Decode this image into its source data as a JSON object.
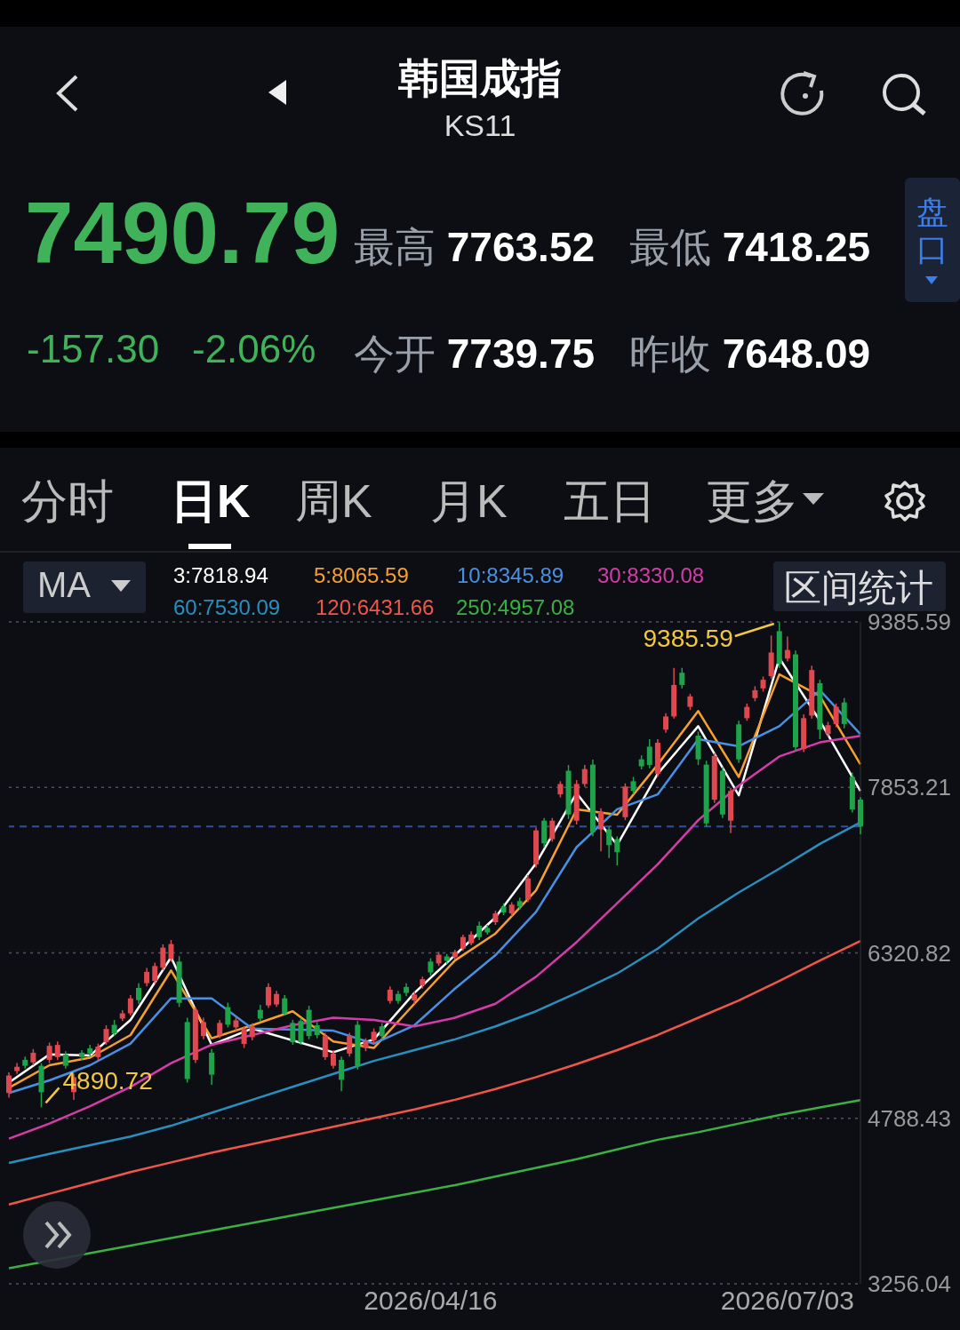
{
  "chart_data": {
    "type": "candlestick",
    "title": "韩国成指",
    "subtitle": "KS11",
    "annotations": [
      "7490.79",
      "最高 7763.52",
      "最低 7418.25",
      "-157.30",
      "-2.06%",
      "今开 7739.75",
      "昨收 7648.09",
      "盘口",
      "分时",
      "日K",
      "周K",
      "月K",
      "五日",
      "更多",
      "MA",
      "区间统计",
      "9385.59",
      "4890.72"
    ],
    "categories": [
      null,
      null,
      null,
      null,
      null,
      null,
      null,
      null,
      null,
      null,
      null,
      null,
      null,
      null,
      null,
      null,
      null,
      null,
      null,
      null,
      null,
      null,
      null,
      null,
      null,
      null,
      null,
      null,
      null,
      null,
      null,
      null,
      null,
      null,
      null,
      null,
      null,
      null,
      null,
      null,
      null,
      null,
      null,
      null,
      null,
      null,
      null,
      null,
      null,
      null,
      null,
      null,
      "2026/04/16",
      null,
      null,
      null,
      null,
      null,
      null,
      null,
      null,
      null,
      null,
      null,
      null,
      null,
      null,
      null,
      null,
      null,
      null,
      null,
      null,
      null,
      null,
      null,
      null,
      null,
      null,
      null,
      null,
      null,
      null,
      null,
      null,
      null,
      null,
      null,
      null,
      null,
      null,
      null,
      null,
      null,
      null,
      null,
      "2026/07/03",
      null,
      null,
      null,
      null,
      null,
      null,
      null,
      null,
      null
    ],
    "ohlc": [
      [
        5023,
        5215,
        4980,
        5185
      ],
      [
        5226,
        5300,
        5200,
        5266
      ],
      [
        5330,
        5360,
        5250,
        5275
      ],
      [
        5307,
        5430,
        5280,
        5396
      ],
      [
        5275,
        5300,
        4890.72,
        5031
      ],
      [
        5330,
        5490,
        5300,
        5460
      ],
      [
        5355,
        5500,
        5330,
        5468
      ],
      [
        5380,
        5410,
        5250,
        5275
      ],
      [
        5031,
        5200,
        4960,
        5169
      ],
      [
        5396,
        5420,
        5330,
        5355
      ],
      [
        5437,
        5470,
        5360,
        5388
      ],
      [
        5355,
        5480,
        5330,
        5453
      ],
      [
        5493,
        5650,
        5470,
        5616
      ],
      [
        5654,
        5700,
        5550,
        5574
      ],
      [
        5712,
        5790,
        5690,
        5761
      ],
      [
        5761,
        5930,
        5740,
        5899
      ],
      [
        5996,
        6040,
        5850,
        5883
      ],
      [
        6040,
        6180,
        6010,
        6145
      ],
      [
        6061,
        6230,
        6040,
        6199
      ],
      [
        6183,
        6400,
        6160,
        6369
      ],
      [
        6264,
        6440,
        6240,
        6402
      ],
      [
        6240,
        6290,
        5820,
        5858
      ],
      [
        5680,
        5720,
        5120,
        5153
      ],
      [
        5330,
        5820,
        5300,
        5793
      ],
      [
        5550,
        5720,
        5520,
        5680
      ],
      [
        5396,
        5430,
        5100,
        5193
      ],
      [
        5558,
        5700,
        5530,
        5672
      ],
      [
        5818,
        5860,
        5630,
        5656
      ],
      [
        5631,
        5730,
        5600,
        5696
      ],
      [
        5477,
        5640,
        5440,
        5615
      ],
      [
        5540,
        5670,
        5510,
        5640
      ],
      [
        5793,
        5840,
        5690,
        5712
      ],
      [
        5834,
        6040,
        5810,
        6005
      ],
      [
        5843,
        5970,
        5820,
        5940
      ],
      [
        5900,
        5930,
        5740,
        5760
      ],
      [
        5672,
        5700,
        5470,
        5493
      ],
      [
        5690,
        5720,
        5470,
        5493
      ],
      [
        5793,
        5830,
        5520,
        5550
      ],
      [
        5650,
        5680,
        5530,
        5560
      ],
      [
        5355,
        5580,
        5330,
        5550
      ],
      [
        5275,
        5420,
        5250,
        5388
      ],
      [
        5330,
        5360,
        5040,
        5145
      ],
      [
        5388,
        5580,
        5360,
        5550
      ],
      [
        5655,
        5690,
        5240,
        5275
      ],
      [
        5440,
        5530,
        5410,
        5500
      ],
      [
        5510,
        5620,
        5480,
        5590
      ],
      [
        5640,
        5670,
        5520,
        5550
      ],
      [
        5875,
        6010,
        5850,
        5980
      ],
      [
        5940,
        5970,
        5850,
        5875
      ],
      [
        6005,
        6040,
        5920,
        5950
      ],
      [
        5880,
        5960,
        5850,
        5935
      ],
      [
        6020,
        6100,
        5990,
        6077
      ],
      [
        6240,
        6270,
        6110,
        6140
      ],
      [
        6223,
        6330,
        6200,
        6304
      ],
      [
        6288,
        6310,
        6220,
        6247
      ],
      [
        6280,
        6350,
        6260,
        6329
      ],
      [
        6361,
        6490,
        6340,
        6467
      ],
      [
        6410,
        6520,
        6390,
        6491
      ],
      [
        6572,
        6610,
        6440,
        6467
      ],
      [
        6550,
        6580,
        6490,
        6510
      ],
      [
        6604,
        6710,
        6580,
        6686
      ],
      [
        6750,
        6780,
        6670,
        6694
      ],
      [
        6686,
        6790,
        6660,
        6767
      ],
      [
        6800,
        6830,
        6720,
        6750
      ],
      [
        6815,
        7040,
        6790,
        7010
      ],
      [
        7140,
        7480,
        7110,
        7455
      ],
      [
        7545,
        7570,
        7300,
        7334
      ],
      [
        7374,
        7570,
        7350,
        7545
      ],
      [
        7788,
        7910,
        7760,
        7885
      ],
      [
        8007,
        8060,
        7560,
        7602
      ],
      [
        7545,
        7920,
        7510,
        7885
      ],
      [
        7885,
        8060,
        7860,
        8023
      ],
      [
        8064,
        8110,
        7400,
        7440
      ],
      [
        7464,
        7660,
        7260,
        7626
      ],
      [
        7464,
        7490,
        7200,
        7318
      ],
      [
        7374,
        7400,
        7130,
        7253
      ],
      [
        7577,
        7890,
        7550,
        7861
      ],
      [
        7910,
        7950,
        7790,
        7820
      ],
      [
        8113,
        8150,
        8020,
        8048
      ],
      [
        8230,
        8300,
        8030,
        8060
      ],
      [
        7980,
        8300,
        7950,
        8267
      ],
      [
        8388,
        8540,
        8360,
        8510
      ],
      [
        8510,
        8960,
        8490,
        8802
      ],
      [
        8915,
        8960,
        8770,
        8802
      ],
      [
        8599,
        8720,
        8570,
        8696
      ],
      [
        8332,
        8370,
        8060,
        8113
      ],
      [
        8064,
        8100,
        7490,
        7520
      ],
      [
        7739,
        8170,
        7710,
        8145
      ],
      [
        8007,
        8040,
        7570,
        7602
      ],
      [
        7545,
        7850,
        7430,
        7820
      ],
      [
        8437,
        8470,
        8080,
        8113
      ],
      [
        8494,
        8630,
        8470,
        8599
      ],
      [
        8680,
        8790,
        8650,
        8753
      ],
      [
        8770,
        8880,
        8740,
        8850
      ],
      [
        8883,
        9260,
        8860,
        9102
      ],
      [
        9300,
        9385.59,
        8960,
        8996
      ],
      [
        9046,
        9250,
        9020,
        9126
      ],
      [
        9085,
        9120,
        8190,
        8226
      ],
      [
        8210,
        8530,
        8180,
        8494
      ],
      [
        8518,
        8980,
        8490,
        8940
      ],
      [
        8818,
        8850,
        8300,
        8388
      ],
      [
        8348,
        8460,
        8320,
        8429
      ],
      [
        8440,
        8630,
        8410,
        8600
      ],
      [
        8640,
        8680,
        8400,
        8440
      ],
      [
        7950,
        7990,
        7620,
        7648.09
      ],
      [
        7739.75,
        7763.52,
        7418.25,
        7490.79
      ]
    ],
    "series": [
      {
        "name": "3:7818.94",
        "type": "line",
        "color": "#ffffff",
        "values": [
          5120,
          null,
          null,
          null,
          null,
          5380,
          null,
          null,
          null,
          null,
          5370,
          null,
          null,
          null,
          null,
          5700,
          null,
          null,
          null,
          null,
          6280,
          null,
          null,
          null,
          null,
          5470,
          null,
          null,
          null,
          null,
          5620,
          null,
          null,
          null,
          null,
          null,
          null,
          null,
          null,
          null,
          5400,
          null,
          null,
          null,
          null,
          5520,
          null,
          null,
          null,
          null,
          5950,
          null,
          null,
          null,
          null,
          6300,
          null,
          null,
          null,
          null,
          6650,
          null,
          null,
          null,
          null,
          7150,
          null,
          null,
          null,
          null,
          7800,
          null,
          null,
          null,
          null,
          7320,
          null,
          null,
          null,
          null,
          7980,
          null,
          null,
          null,
          null,
          8420,
          null,
          null,
          null,
          null,
          7780,
          null,
          null,
          null,
          null,
          9050,
          null,
          null,
          null,
          null,
          8470,
          null,
          null,
          null,
          null,
          7818.94
        ]
      },
      {
        "name": "5:8065.59",
        "type": "line",
        "color": "#f5a030",
        "values": [
          5071,
          null,
          null,
          null,
          null,
          5280,
          null,
          null,
          null,
          null,
          5350,
          null,
          null,
          null,
          null,
          5560,
          null,
          null,
          null,
          null,
          6158,
          null,
          null,
          null,
          null,
          5530,
          null,
          null,
          null,
          null,
          5650,
          null,
          null,
          null,
          null,
          5780,
          null,
          null,
          null,
          null,
          5500,
          null,
          null,
          null,
          null,
          5440,
          null,
          null,
          null,
          null,
          5850,
          null,
          null,
          null,
          null,
          6250,
          null,
          null,
          null,
          null,
          6500,
          null,
          null,
          null,
          null,
          6900,
          null,
          null,
          null,
          null,
          7650,
          null,
          null,
          null,
          null,
          7600,
          null,
          null,
          null,
          null,
          8064,
          null,
          null,
          null,
          null,
          8560,
          null,
          null,
          null,
          null,
          7950,
          null,
          null,
          null,
          null,
          8900,
          null,
          null,
          null,
          null,
          8700,
          null,
          null,
          null,
          null,
          8065.59
        ]
      },
      {
        "name": "10:8345.89",
        "type": "line",
        "color": "#4a90e2",
        "values": [
          5023,
          null,
          null,
          null,
          null,
          5140,
          null,
          null,
          null,
          null,
          5280,
          null,
          null,
          null,
          null,
          5480,
          null,
          null,
          null,
          null,
          5900,
          null,
          null,
          null,
          null,
          5900,
          null,
          null,
          null,
          null,
          5620,
          null,
          null,
          null,
          null,
          null,
          null,
          null,
          null,
          null,
          5600,
          null,
          null,
          null,
          null,
          5480,
          null,
          null,
          null,
          null,
          5650,
          null,
          null,
          null,
          null,
          5990,
          null,
          null,
          null,
          null,
          6300,
          null,
          null,
          null,
          null,
          6700,
          null,
          null,
          null,
          null,
          7300,
          null,
          null,
          null,
          null,
          7650,
          null,
          null,
          null,
          null,
          7788,
          null,
          null,
          null,
          null,
          8300,
          null,
          null,
          null,
          null,
          8234,
          null,
          null,
          null,
          null,
          8420,
          null,
          null,
          null,
          null,
          8753,
          null,
          null,
          null,
          null,
          8345.89
        ]
      },
      {
        "name": "30:8330.08",
        "type": "line",
        "color": "#d63ca8",
        "values": [
          4600,
          null,
          null,
          null,
          null,
          4740,
          null,
          null,
          null,
          null,
          4900,
          null,
          null,
          null,
          null,
          5080,
          null,
          null,
          null,
          null,
          5300,
          null,
          null,
          null,
          null,
          5470,
          null,
          null,
          null,
          null,
          5560,
          null,
          null,
          null,
          null,
          5650,
          null,
          null,
          null,
          null,
          5720,
          null,
          null,
          null,
          null,
          5700,
          null,
          null,
          null,
          null,
          5640,
          null,
          null,
          null,
          null,
          5720,
          null,
          null,
          null,
          null,
          5850,
          null,
          null,
          null,
          null,
          6100,
          null,
          null,
          null,
          null,
          6420,
          null,
          null,
          null,
          null,
          6780,
          null,
          null,
          null,
          null,
          7140,
          null,
          null,
          null,
          null,
          7550,
          null,
          null,
          null,
          null,
          7870,
          null,
          null,
          null,
          null,
          8140,
          null,
          null,
          null,
          null,
          8270,
          null,
          null,
          null,
          null,
          8330.08
        ]
      },
      {
        "name": "60:7530.09",
        "type": "line",
        "color": "#2a8fbd",
        "values": [
          4375,
          null,
          null,
          null,
          null,
          4460,
          null,
          null,
          null,
          null,
          4540,
          null,
          null,
          null,
          null,
          4620,
          null,
          null,
          null,
          null,
          4720,
          null,
          null,
          null,
          null,
          4840,
          null,
          null,
          null,
          null,
          4960,
          null,
          null,
          null,
          null,
          5080,
          null,
          null,
          null,
          null,
          5200,
          null,
          null,
          null,
          null,
          5320,
          null,
          null,
          null,
          null,
          5420,
          null,
          null,
          null,
          null,
          5520,
          null,
          null,
          null,
          null,
          5640,
          null,
          null,
          null,
          null,
          5780,
          null,
          null,
          null,
          null,
          5950,
          null,
          null,
          null,
          null,
          6130,
          null,
          null,
          null,
          null,
          6360,
          null,
          null,
          null,
          null,
          6640,
          null,
          null,
          null,
          null,
          6880,
          null,
          null,
          null,
          null,
          7100,
          null,
          null,
          null,
          null,
          7330,
          null,
          null,
          null,
          null,
          7530.09
        ]
      },
      {
        "name": "120:6431.66",
        "type": "line",
        "color": "#f0564a",
        "values": [
          3990,
          null,
          null,
          null,
          null,
          4090,
          null,
          null,
          null,
          null,
          4190,
          null,
          null,
          null,
          null,
          4290,
          null,
          null,
          null,
          null,
          4380,
          null,
          null,
          null,
          null,
          4470,
          null,
          null,
          null,
          null,
          4550,
          null,
          null,
          null,
          null,
          4630,
          null,
          null,
          null,
          null,
          4710,
          null,
          null,
          null,
          null,
          4790,
          null,
          null,
          null,
          null,
          4870,
          null,
          null,
          null,
          null,
          4960,
          null,
          null,
          null,
          null,
          5060,
          null,
          null,
          null,
          null,
          5170,
          null,
          null,
          null,
          null,
          5290,
          null,
          null,
          null,
          null,
          5420,
          null,
          null,
          null,
          null,
          5560,
          null,
          null,
          null,
          null,
          5720,
          null,
          null,
          null,
          null,
          5880,
          null,
          null,
          null,
          null,
          6060,
          null,
          null,
          null,
          null,
          6250,
          null,
          null,
          null,
          null,
          6431.66
        ]
      },
      {
        "name": "250:4957.08",
        "type": "line",
        "color": "#3cb043",
        "values": [
          3400,
          null,
          null,
          null,
          null,
          null,
          null,
          null,
          null,
          null,
          3540,
          null,
          null,
          null,
          null,
          3610,
          null,
          null,
          null,
          null,
          3680,
          null,
          null,
          null,
          null,
          3750,
          null,
          null,
          null,
          null,
          3820,
          null,
          null,
          null,
          null,
          3890,
          null,
          null,
          null,
          null,
          3960,
          null,
          null,
          null,
          null,
          4030,
          null,
          null,
          null,
          null,
          4100,
          null,
          null,
          null,
          null,
          4170,
          null,
          null,
          null,
          null,
          4250,
          null,
          null,
          null,
          null,
          4330,
          null,
          null,
          null,
          null,
          4410,
          null,
          null,
          null,
          null,
          4500,
          null,
          null,
          null,
          null,
          4590,
          null,
          null,
          null,
          null,
          4660,
          null,
          null,
          null,
          null,
          4740,
          null,
          null,
          null,
          null,
          4820,
          null,
          null,
          null,
          null,
          4890,
          null,
          null,
          null,
          null,
          4957.08
        ]
      }
    ],
    "ylim": [
      3256.04,
      9385.59
    ],
    "yticks": [
      3256.04,
      4788.43,
      6320.82,
      7853.21,
      9385.59
    ],
    "ref_lines": [
      {
        "axis": "y",
        "value": 7490.79,
        "color": "#2f4f9f",
        "line_style": "dashed"
      }
    ],
    "grid": "y",
    "legend": "top left",
    "marker": "none",
    "line_style": "solid"
  }
}
